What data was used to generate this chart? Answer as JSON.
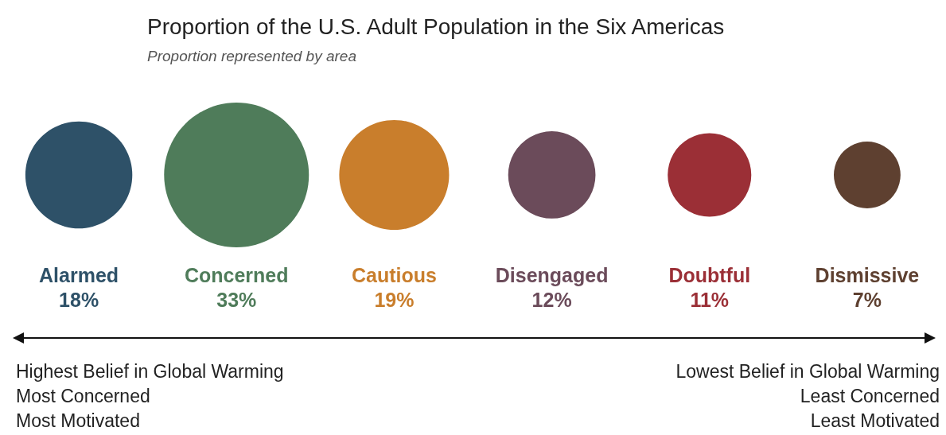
{
  "chart_data": {
    "type": "other",
    "title": "Proportion of the U.S. Adult Population in the Six Americas",
    "subtitle": "Proportion represented by area",
    "categories": [
      "Alarmed",
      "Concerned",
      "Cautious",
      "Disengaged",
      "Doubtful",
      "Dismissive"
    ],
    "values": [
      18,
      33,
      19,
      12,
      11,
      7
    ],
    "value_labels": [
      "18%",
      "33%",
      "19%",
      "12%",
      "11%",
      "7%"
    ],
    "colors": [
      "#2e5168",
      "#4f7c5a",
      "#c97e2c",
      "#6b4b5a",
      "#9b2f36",
      "#5e4030"
    ],
    "annotations": [
      "Highest Belief in Global Warming",
      "Most Concerned",
      "Most Motivated",
      "Lowest Belief in Global Warming",
      "Least Concerned",
      "Least Motivated"
    ]
  }
}
